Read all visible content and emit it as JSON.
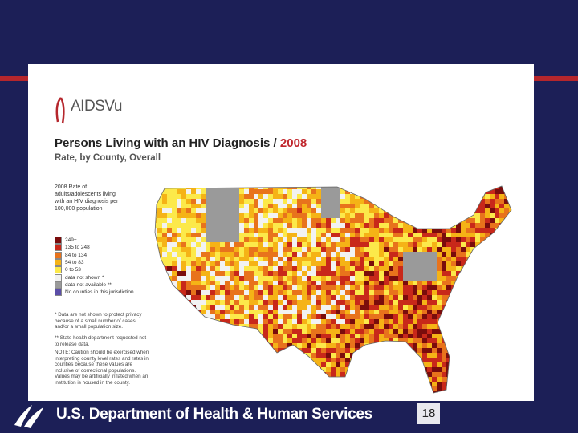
{
  "slide": {
    "logo": "AIDSVu",
    "title": "Persons Living with an HIV Diagnosis /",
    "title_year": "2008",
    "subtitle": "Rate, by County, Overall",
    "legend": {
      "title": "2008 Rate of adults/adolescents living with an HIV diagnosis per 100,000 population",
      "items": [
        {
          "label": "249+",
          "color": "#7a0c0c"
        },
        {
          "label": "135 to 248",
          "color": "#c8281a"
        },
        {
          "label": "84 to 134",
          "color": "#e8731c"
        },
        {
          "label": "54 to 83",
          "color": "#f5b316"
        },
        {
          "label": "0 to 53",
          "color": "#fce94a"
        },
        {
          "label": "data not shown *",
          "color": "#f2f2f2"
        },
        {
          "label": "data not available **",
          "color": "#9a9a9a"
        },
        {
          "label": "No counties in this jurisdiction",
          "color": "#5b4ea8"
        }
      ]
    },
    "notes": [
      "* Data are not shown to protect privacy because of a small number of cases and/or a small population size.",
      "** State health department requested not to release data.",
      "NOTE: Caution should be exercised when interpreting county level rates and rates in counties because these values are inclusive of correctional populations. Values may be artificially inflated when an institution is housed in the county."
    ],
    "footer": {
      "organization": "U.S. Department of Health & Human Services",
      "page_number": "18"
    }
  }
}
